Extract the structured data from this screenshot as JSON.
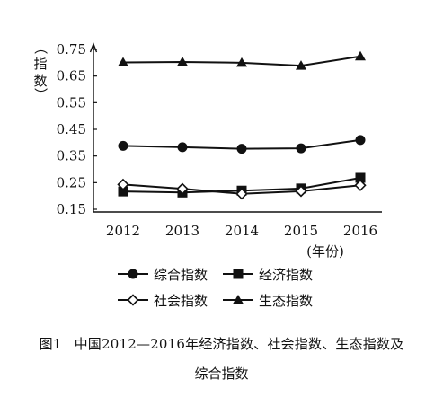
{
  "caption": {
    "figure_number": "图1",
    "title_line1": "中国2012—2016年经济指数、社会指数、生态指数及",
    "title_line2": "综合指数"
  },
  "chart_data": {
    "type": "line",
    "x": [
      2012,
      2013,
      2014,
      2015,
      2016
    ],
    "x_tick_labels": [
      "2012",
      "2013",
      "2014",
      "2015",
      "2016"
    ],
    "xlabel": "(年份)",
    "ylabel": "（指数）",
    "ylim": [
      0.15,
      0.75
    ],
    "y_ticks": [
      0.15,
      0.25,
      0.35,
      0.45,
      0.55,
      0.65,
      0.75
    ],
    "y_tick_labels": [
      "0.15",
      "0.25",
      "0.35",
      "0.45",
      "0.55",
      "0.65",
      "0.75"
    ],
    "grid": false,
    "legend_position": "bottom",
    "series": [
      {
        "name": "综合指数",
        "marker": "circle-filled",
        "values": [
          0.388,
          0.383,
          0.377,
          0.379,
          0.41
        ]
      },
      {
        "name": "经济指数",
        "marker": "square-filled",
        "values": [
          0.217,
          0.213,
          0.22,
          0.228,
          0.268
        ]
      },
      {
        "name": "社会指数",
        "marker": "diamond-open",
        "values": [
          0.243,
          0.227,
          0.208,
          0.218,
          0.24
        ]
      },
      {
        "name": "生态指数",
        "marker": "triangle-filled",
        "values": [
          0.701,
          0.703,
          0.7,
          0.689,
          0.724
        ]
      }
    ],
    "line_color": "#111111"
  }
}
